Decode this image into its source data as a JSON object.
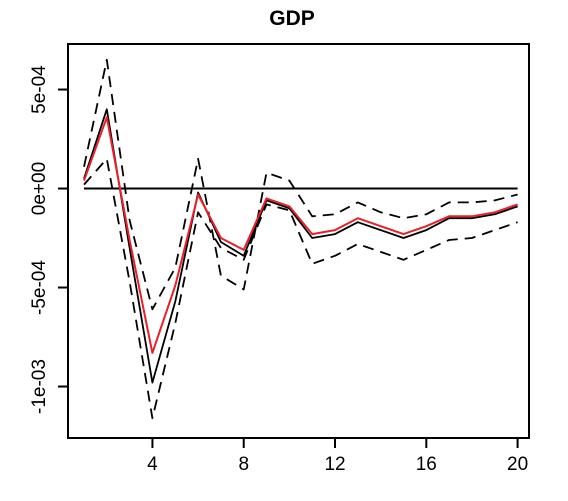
{
  "chart_data": {
    "type": "line",
    "title": "GDP",
    "xlabel": "",
    "ylabel": "",
    "xlim": [
      0.3,
      20.5
    ],
    "ylim": [
      -0.00126,
      0.00073
    ],
    "x_ticks": [
      4,
      8,
      12,
      16,
      20
    ],
    "x_tick_labels": [
      "4",
      "8",
      "12",
      "16",
      "20"
    ],
    "y_ticks": [
      0.0005,
      0.0,
      -0.0005,
      -0.001
    ],
    "y_tick_labels": [
      "5e-04",
      "0e+00",
      "-5e-04",
      "-1e-03"
    ],
    "reference_line": {
      "y": 0,
      "color": "#000000"
    },
    "x": [
      1,
      2,
      3,
      4,
      5,
      6,
      7,
      8,
      9,
      10,
      11,
      12,
      13,
      14,
      15,
      16,
      17,
      18,
      19,
      20
    ],
    "series": [
      {
        "style": "dashed",
        "color": "#000000",
        "values": [
          0.00011,
          0.00065,
          -0.00016,
          -0.00061,
          -0.0004,
          0.00015,
          -0.00044,
          -0.00051,
          8e-05,
          4e-05,
          -0.00014,
          -0.00013,
          -7e-05,
          -0.00012,
          -0.00015,
          -0.00013,
          -7e-05,
          -7e-05,
          -6e-05,
          -3e-05
        ]
      },
      {
        "style": "solid",
        "color": "#000000",
        "values": [
          5e-05,
          0.0004,
          -0.0003,
          -0.00098,
          -0.00057,
          -2e-05,
          -0.00027,
          -0.00034,
          -6e-05,
          -0.0001,
          -0.00025,
          -0.00023,
          -0.00017,
          -0.00021,
          -0.00025,
          -0.00021,
          -0.00015,
          -0.00015,
          -0.00013,
          -9e-05
        ]
      },
      {
        "style": "solid",
        "color": "#e8202a",
        "values": [
          4e-05,
          0.00036,
          -0.00026,
          -0.00083,
          -0.00049,
          -3e-05,
          -0.00025,
          -0.00031,
          -5e-05,
          -9e-05,
          -0.00023,
          -0.00021,
          -0.00015,
          -0.00019,
          -0.00023,
          -0.00019,
          -0.00014,
          -0.00014,
          -0.00012,
          -8e-05
        ]
      },
      {
        "style": "dashed",
        "color": "#000000",
        "values": [
          2e-05,
          0.00015,
          -0.00047,
          -0.00116,
          -0.00068,
          -0.00012,
          -0.0003,
          -0.00036,
          -8e-05,
          -0.00011,
          -0.00038,
          -0.00034,
          -0.00028,
          -0.00032,
          -0.00036,
          -0.00031,
          -0.00026,
          -0.00025,
          -0.00021,
          -0.00017
        ]
      }
    ]
  }
}
